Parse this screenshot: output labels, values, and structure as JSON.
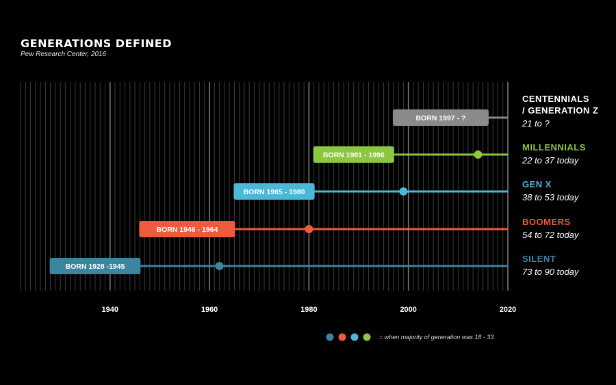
{
  "title": "GENERATIONS DEFINED",
  "subtitle": "Pew Research Center, 2016",
  "legend_note": "=  when majority of generation was 18 - 33",
  "chart_data": {
    "type": "timeline",
    "title": "GENERATIONS DEFINED",
    "subtitle": "Pew Research Center, 2016",
    "x_axis": {
      "ticks": [
        1940,
        1960,
        1980,
        2000,
        2020
      ],
      "range": [
        1922,
        2020
      ],
      "minor_gridlines": "yearly"
    },
    "series": [
      {
        "name": "CENTENNIALS / GENERATION Z",
        "name_lines": [
          "CENTENNIALS",
          "/ GENERATION Z"
        ],
        "age": "21 to ?",
        "born_label": "BORN 1997 - ?",
        "start": 1997,
        "end": null,
        "marker_year": null,
        "color": "#8a8a8a",
        "name_color": "#ffffff"
      },
      {
        "name": "MILLENNIALS",
        "name_lines": [
          "MILLENNIALS"
        ],
        "age": "22 to 37 today",
        "born_label": "BORN 1981 - 1996",
        "start": 1981,
        "end": 1996,
        "marker_year": 2014,
        "color": "#8dc63f",
        "name_color": "#8dc63f"
      },
      {
        "name": "GEN X",
        "name_lines": [
          "GEN X"
        ],
        "age": "38 to 53 today",
        "born_label": "BORN 1965 - 1980",
        "start": 1965,
        "end": 1980,
        "marker_year": 1999,
        "color": "#4ab8d8",
        "name_color": "#4ab8d8"
      },
      {
        "name": "BOOMERS",
        "name_lines": [
          "BOOMERS"
        ],
        "age": "54 to 72 today",
        "born_label": "BORN 1946 - 1964",
        "start": 1946,
        "end": 1964,
        "marker_year": 1980,
        "color": "#f05a3c",
        "name_color": "#f05a3c"
      },
      {
        "name": "SILENT",
        "name_lines": [
          "SILENT"
        ],
        "age": "73 to 90 today",
        "born_label": "BORN 1928 -1945",
        "start": 1928,
        "end": 1945,
        "marker_year": 1962,
        "color": "#3a86a0",
        "name_color": "#3a86a0"
      }
    ],
    "legend": {
      "colors": [
        "#3a86a0",
        "#f05a3c",
        "#4ab8d8",
        "#8dc63f"
      ],
      "text": "=  when majority of generation was 18 - 33"
    }
  }
}
